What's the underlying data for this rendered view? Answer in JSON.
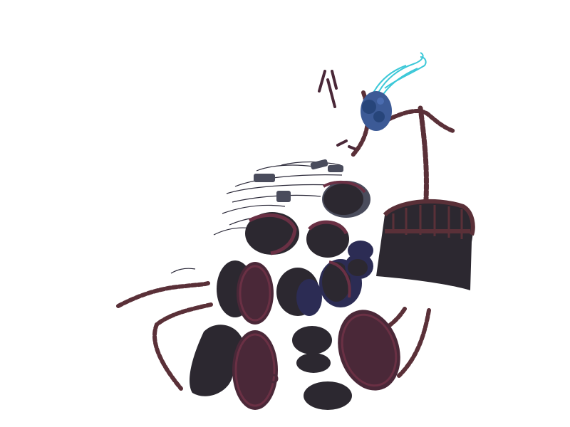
{
  "scene": {
    "subject": "pile-of-chained-shields",
    "colors": {
      "background": "#ffffff",
      "dark_fill": "#2c2830",
      "maroon_fill": "#4a2838",
      "maroon_rim": "#6a3044",
      "navy_shadow": "#2c2c54",
      "chain": "#5a3038",
      "orb": "#3c5a96",
      "orb_dark": "#27457a",
      "smoke": "#3cc8d8",
      "wisp": "#2c2a3a",
      "steel": "#4a4c5c"
    },
    "icons": {
      "orb": "glowing-orb-icon",
      "smoke": "smoke-wisp-icon",
      "cage": "hanging-cage-icon"
    }
  }
}
